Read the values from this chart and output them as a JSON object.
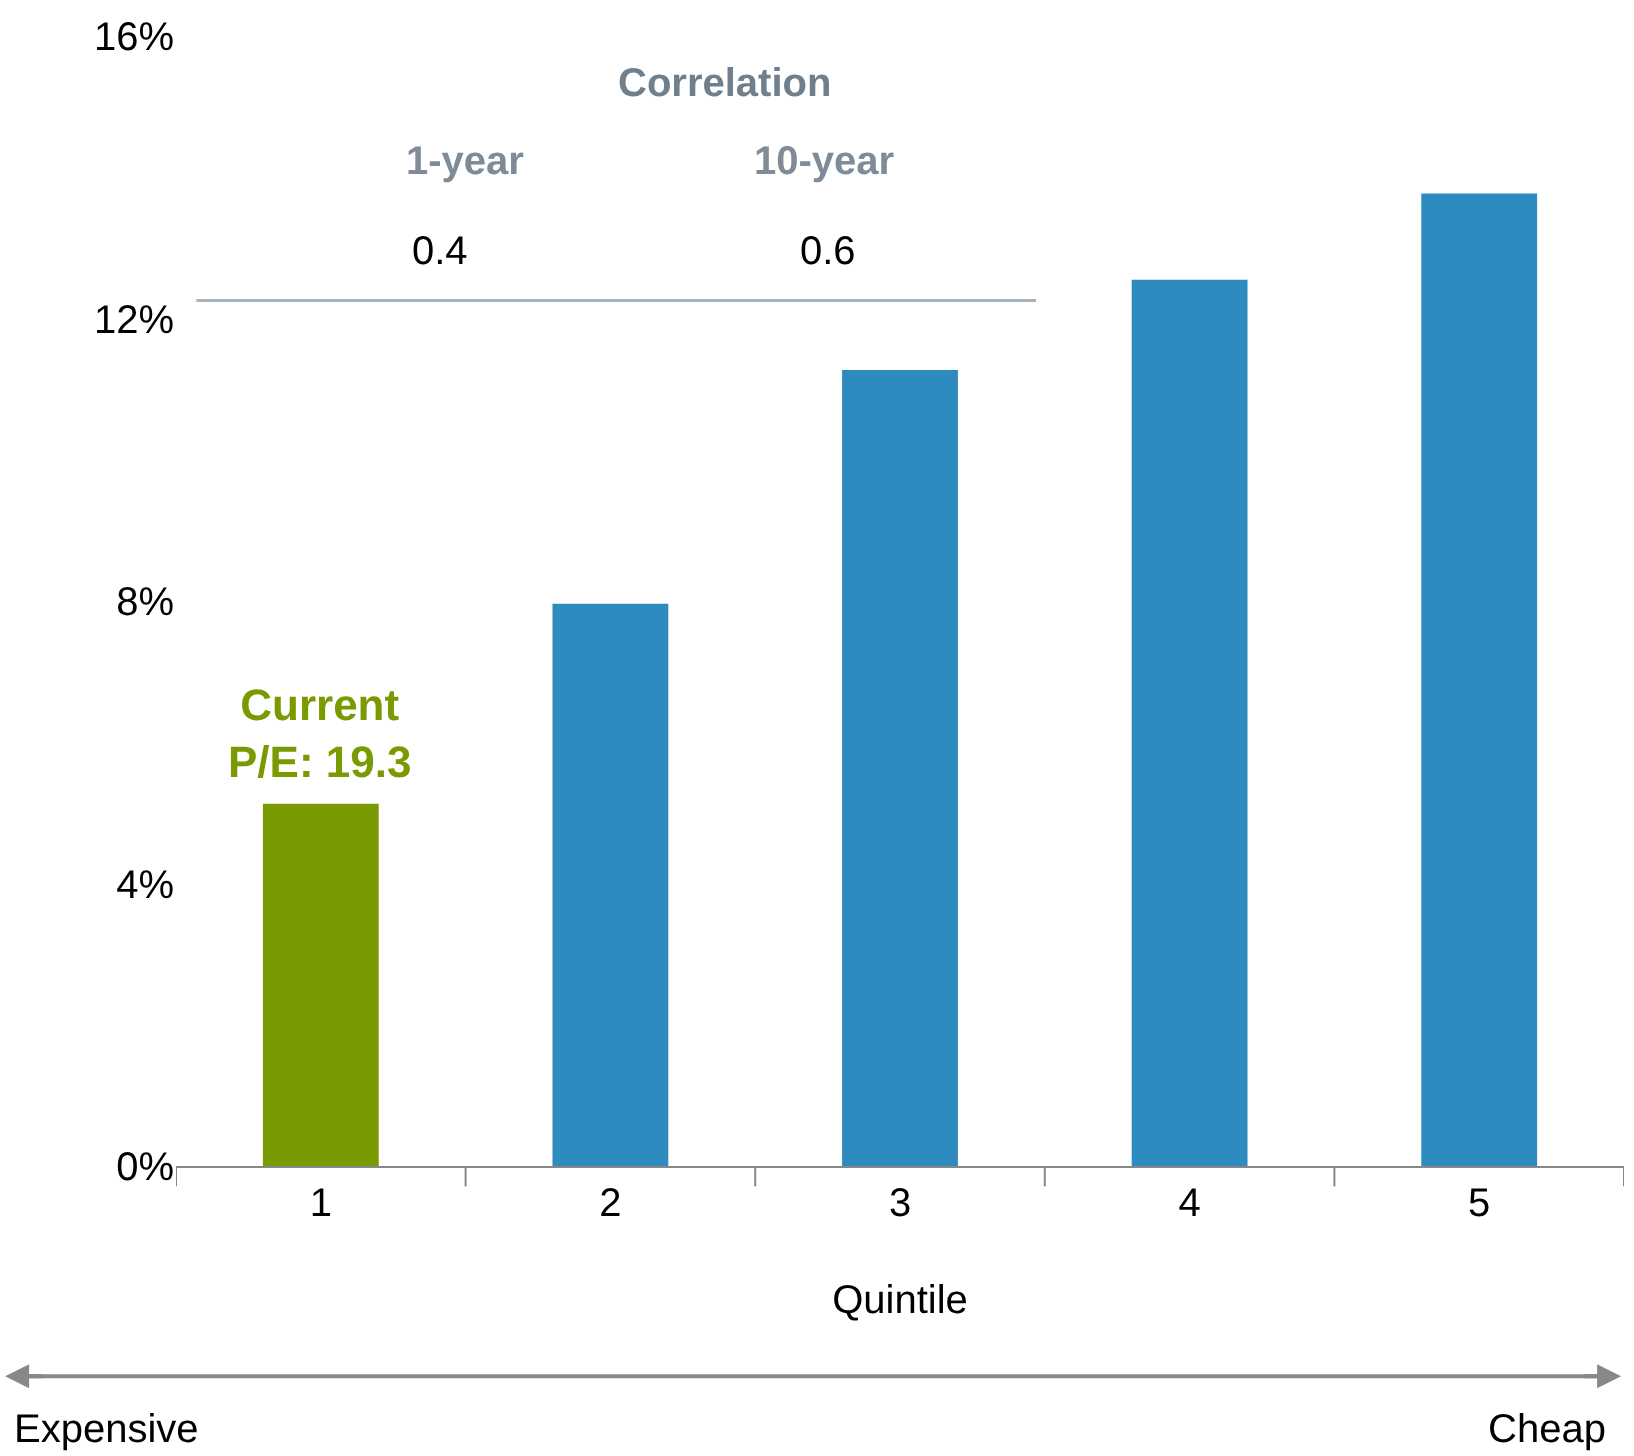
{
  "chart_data": {
    "type": "bar",
    "xlabel": "Quintile",
    "categories": [
      "1",
      "2",
      "3",
      "4",
      "5"
    ],
    "values": [
      5.13,
      7.96,
      11.27,
      12.55,
      13.77
    ],
    "colors": [
      "#7a9a01",
      "#2e8bc0",
      "#2e8bc0",
      "#2e8bc0",
      "#2e8bc0"
    ],
    "ylim": [
      0,
      16
    ],
    "yticks": [
      {
        "value": 0,
        "label": "0%"
      },
      {
        "value": 4,
        "label": "4%"
      },
      {
        "value": 8,
        "label": "8%"
      },
      {
        "value": 12,
        "label": "12%"
      },
      {
        "value": 16,
        "label": "16%"
      }
    ],
    "annotations": [
      {
        "text": "Current P/E: 19.3",
        "x": "1",
        "y": 5.13
      },
      "Correlation",
      "1-year",
      "10-year",
      "0.4",
      "0.6",
      "Expensive",
      "Cheap"
    ]
  }
}
